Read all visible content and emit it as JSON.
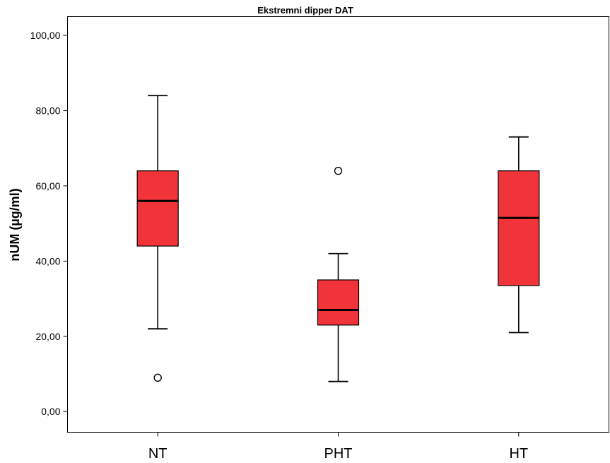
{
  "chart_data": {
    "type": "box",
    "title": "Ekstremni dipper DAT",
    "xlabel": "",
    "ylabel": "nUM (µg/ml)",
    "ylim": [
      -5.5,
      105
    ],
    "yticks": [
      0,
      20,
      40,
      60,
      80,
      100
    ],
    "ytick_labels": [
      "0,00",
      "20,00",
      "40,00",
      "60,00",
      "80,00",
      "100,00"
    ],
    "categories": [
      "NT",
      "PHT",
      "HT"
    ],
    "box_color": "#f0343a",
    "boxes": [
      {
        "category": "NT",
        "whisker_low": 22,
        "q1": 44,
        "median": 56,
        "q3": 64,
        "whisker_high": 84,
        "outliers": [
          9
        ]
      },
      {
        "category": "PHT",
        "whisker_low": 8,
        "q1": 23,
        "median": 27,
        "q3": 35,
        "whisker_high": 42,
        "outliers": [
          64
        ]
      },
      {
        "category": "HT",
        "whisker_low": 21,
        "q1": 33.5,
        "median": 51.5,
        "q3": 64,
        "whisker_high": 73,
        "outliers": []
      }
    ],
    "grid": false,
    "legend": "none"
  }
}
